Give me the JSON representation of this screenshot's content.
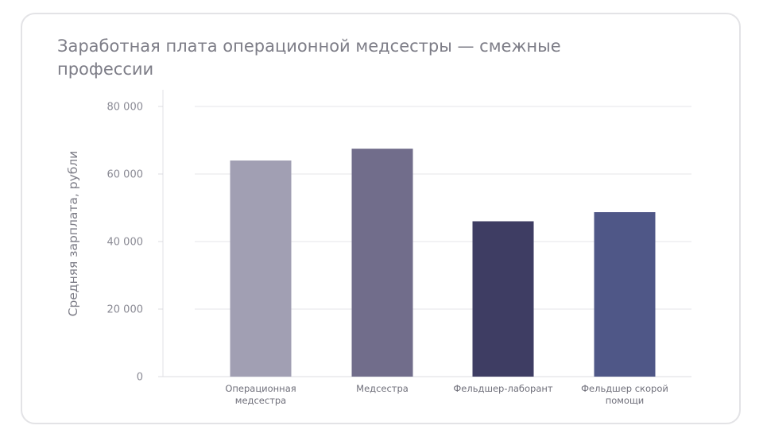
{
  "chart_data": {
    "type": "bar",
    "title": "Заработная плата операционной медсестры — смежные профессии",
    "ylabel": "Средняя зарплата, рубли",
    "xlabel": "",
    "categories": [
      [
        "Операционная",
        "медсестра"
      ],
      [
        "Медсестра"
      ],
      [
        "Фельдшер-лаборант"
      ],
      [
        "Фельдшер скорой",
        "помощи"
      ]
    ],
    "values": [
      64000,
      67500,
      46000,
      48700
    ],
    "colors": [
      "#a19fb3",
      "#716d8b",
      "#3e3d63",
      "#4f5787"
    ],
    "ylim": [
      0,
      80000
    ],
    "yticks": [
      0,
      20000,
      40000,
      60000,
      80000
    ],
    "ytick_labels": [
      "0",
      "20 000",
      "40 000",
      "60 000",
      "80 000"
    ],
    "grid": true,
    "legend": "none"
  }
}
